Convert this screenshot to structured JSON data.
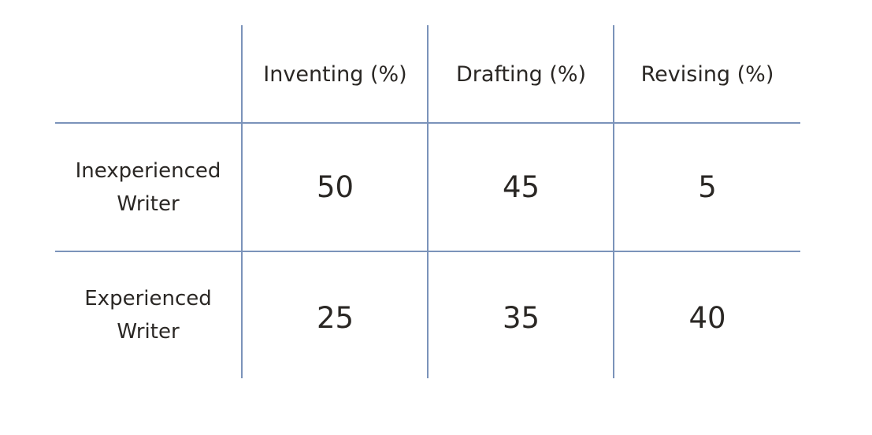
{
  "table": {
    "columns": [
      "Inventing (%)",
      "Drafting (%)",
      "Revising (%)"
    ],
    "rows": [
      {
        "label_line1": "Inexperienced",
        "label_line2": "Writer",
        "values": [
          "50",
          "45",
          "5"
        ]
      },
      {
        "label_line1": "Experienced",
        "label_line2": "Writer",
        "values": [
          "25",
          "35",
          "40"
        ]
      }
    ],
    "grid_color": "#7b93ba",
    "text_color": "#2a2724"
  }
}
